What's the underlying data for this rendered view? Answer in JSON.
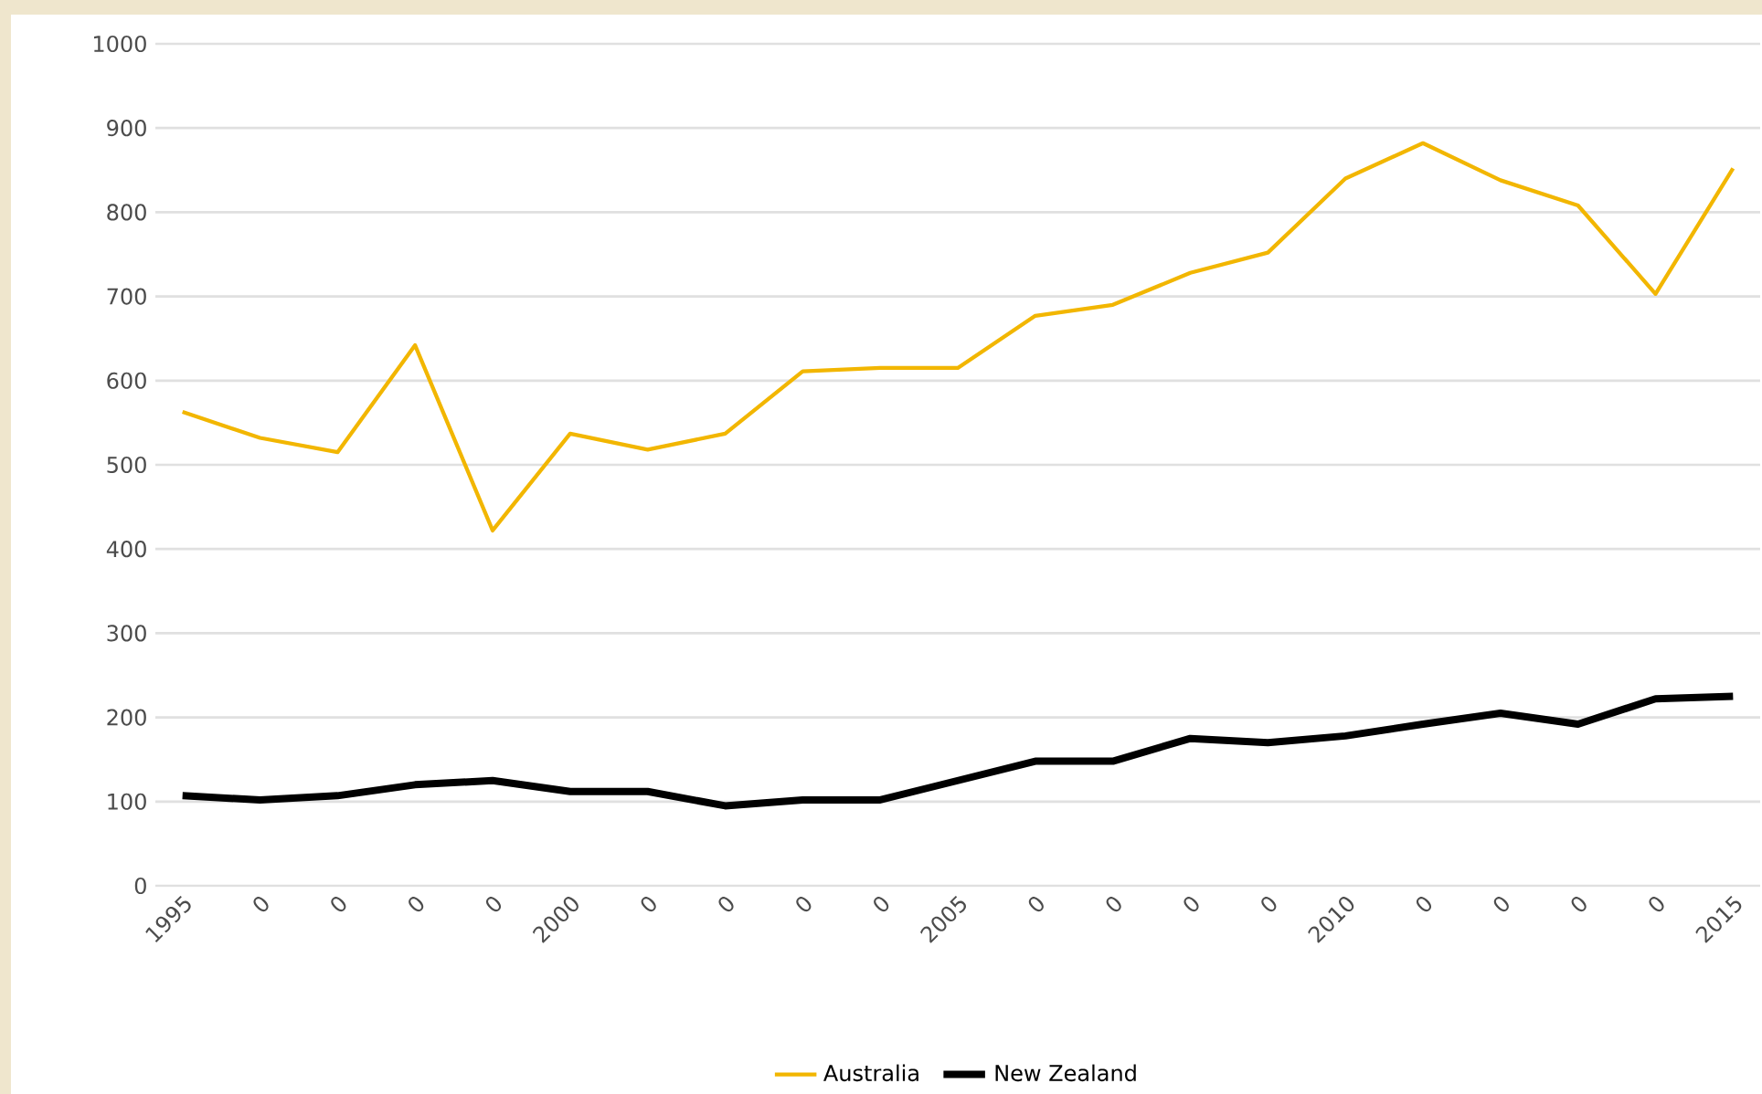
{
  "chart_data": {
    "type": "line",
    "categories": [
      "1995",
      "0",
      "0",
      "0",
      "0",
      "2000",
      "0",
      "0",
      "0",
      "0",
      "2005",
      "0",
      "0",
      "0",
      "0",
      "2010",
      "0",
      "0",
      "0",
      "0",
      "2015"
    ],
    "series": [
      {
        "name": "Australia",
        "color": "#f2b600",
        "values": [
          563,
          532,
          515,
          642,
          422,
          537,
          518,
          537,
          611,
          615,
          615,
          677,
          690,
          728,
          752,
          840,
          882,
          838,
          808,
          703,
          852
        ]
      },
      {
        "name": "New Zealand",
        "color": "#000000",
        "values": [
          107,
          102,
          107,
          120,
          125,
          112,
          112,
          95,
          102,
          102,
          125,
          148,
          148,
          175,
          170,
          178,
          192,
          205,
          192,
          222,
          225
        ]
      }
    ],
    "ylim": [
      0,
      1000
    ],
    "yticks": [
      0,
      100,
      200,
      300,
      400,
      500,
      600,
      700,
      800,
      900,
      1000
    ],
    "grid": "y",
    "legend": "bottom",
    "marker": "none",
    "line_style": "solid"
  }
}
